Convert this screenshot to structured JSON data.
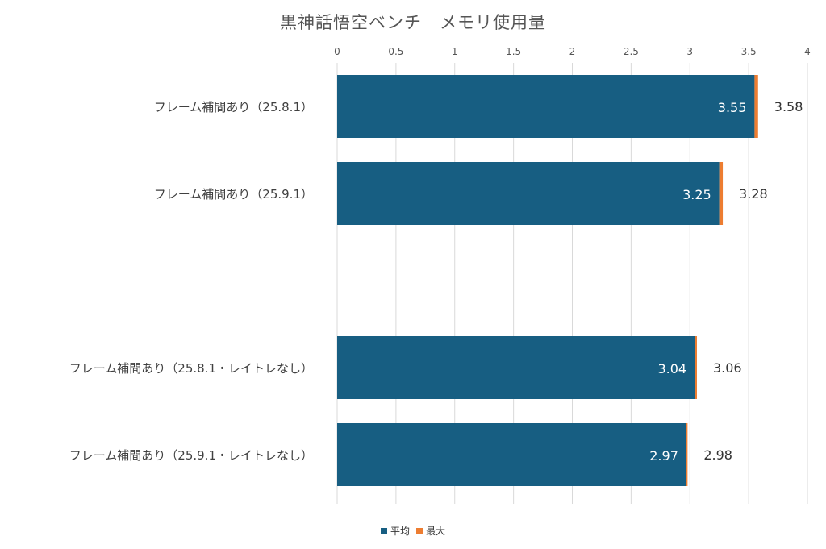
{
  "chart_data": {
    "type": "bar",
    "orientation": "horizontal",
    "stacked": true,
    "title": "黒神話悟空ベンチ　メモリ使用量",
    "categories": [
      "フレーム補間あり（25.8.1）",
      "フレーム補間あり（25.9.1）",
      "",
      "フレーム補間あり（25.8.1・レイトレなし）",
      "フレーム補間あり（25.9.1・レイトレなし）"
    ],
    "series": [
      {
        "name": "平均",
        "color": "#175e82",
        "values": [
          3.55,
          3.25,
          null,
          3.04,
          2.97
        ],
        "labels": [
          "3.55",
          "3.25",
          "",
          "3.04",
          "2.97"
        ]
      },
      {
        "name": "最大",
        "color": "#ed7d31",
        "values": [
          0.03,
          0.03,
          null,
          0.02,
          0.01
        ],
        "labels": [
          "3.58",
          "3.28",
          "",
          "3.06",
          "2.98"
        ]
      }
    ],
    "xlim": [
      0,
      4
    ],
    "x_ticks": [
      "0",
      "0.5",
      "1",
      "1.5",
      "2",
      "2.5",
      "3",
      "3.5",
      "4"
    ],
    "axis_position": "top",
    "grid": true,
    "legend": "bottom"
  }
}
